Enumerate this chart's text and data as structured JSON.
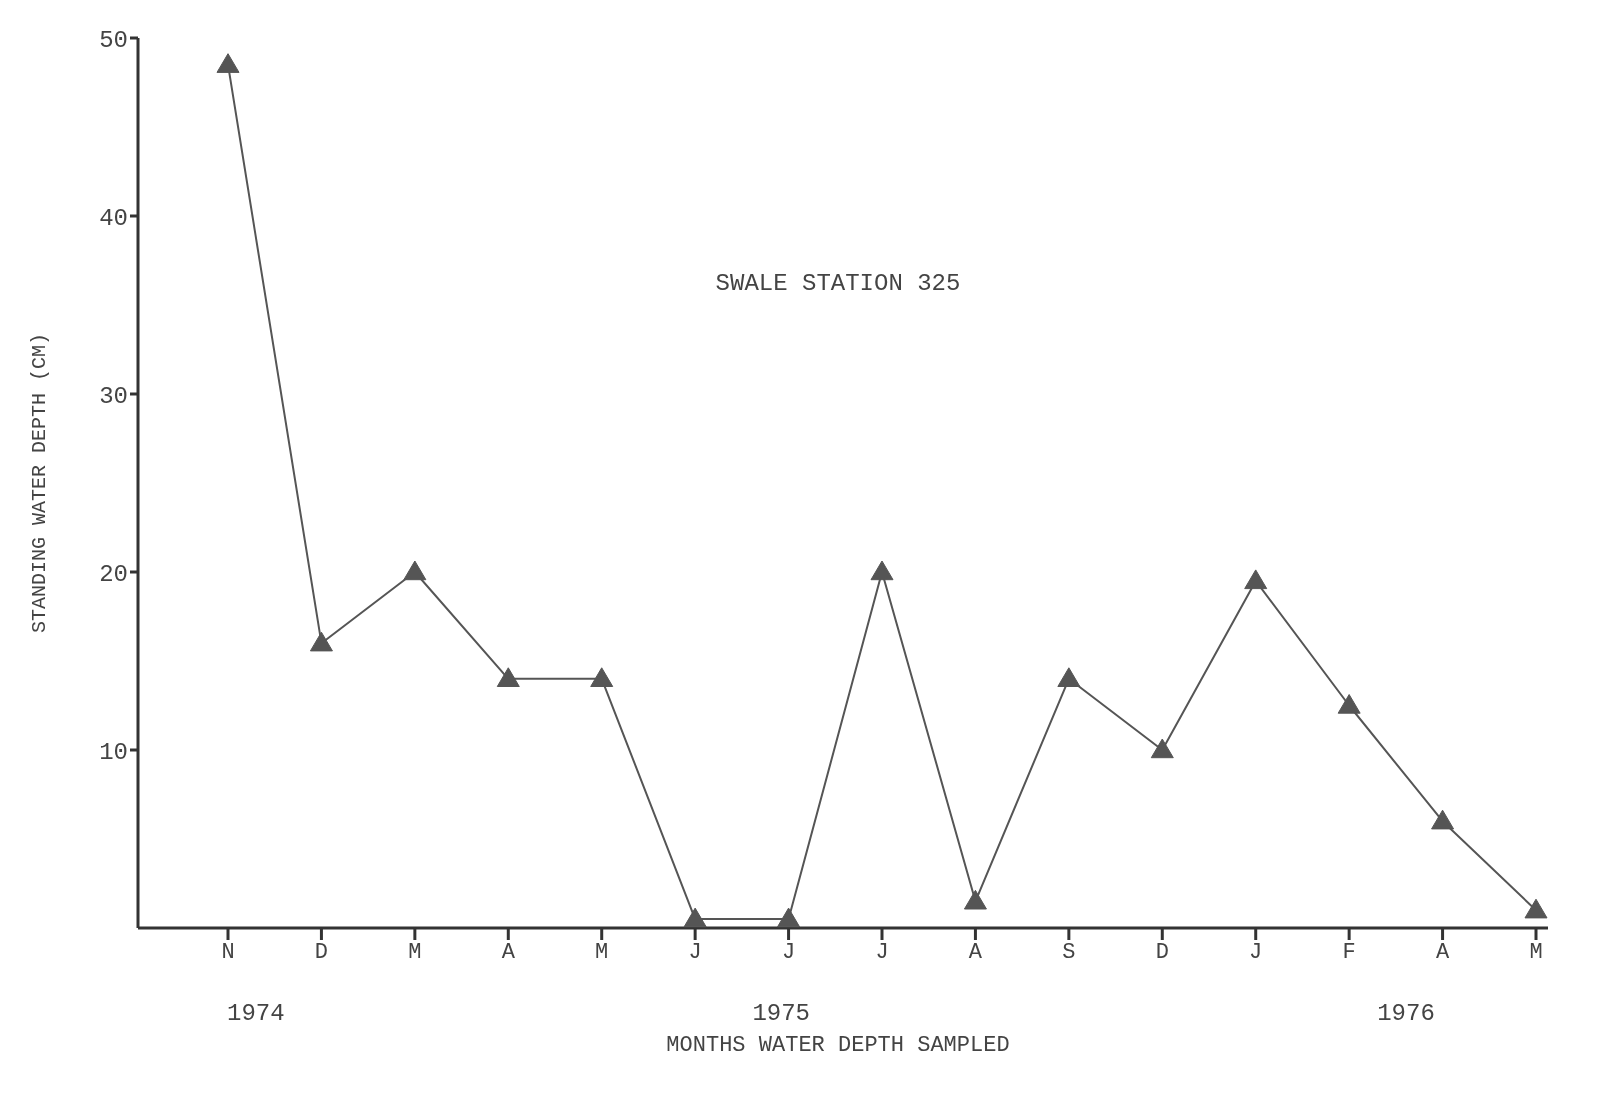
{
  "chart_data": {
    "type": "line",
    "title": "SWALE STATION 325",
    "xlabel": "MONTHS WATER DEPTH SAMPLED",
    "ylabel": "STANDING WATER DEPTH (CM)",
    "categories": [
      "N",
      "D",
      "M",
      "A",
      "M",
      "J",
      "J",
      "J",
      "A",
      "S",
      "D",
      "J",
      "F",
      "A",
      "M"
    ],
    "series": [
      {
        "color": "#555555",
        "values": [
          48.5,
          16,
          20,
          14,
          14,
          0.5,
          0.5,
          20,
          1.5,
          14,
          10,
          19.5,
          12.5,
          6,
          1
        ]
      }
    ],
    "ylim": [
      0,
      50
    ],
    "yticks": [
      10,
      20,
      30,
      40,
      50
    ],
    "grid": false,
    "legend": false,
    "marker": "triangle",
    "line_style": "solid",
    "annotations": [
      "1974",
      "1975",
      "1976"
    ]
  }
}
